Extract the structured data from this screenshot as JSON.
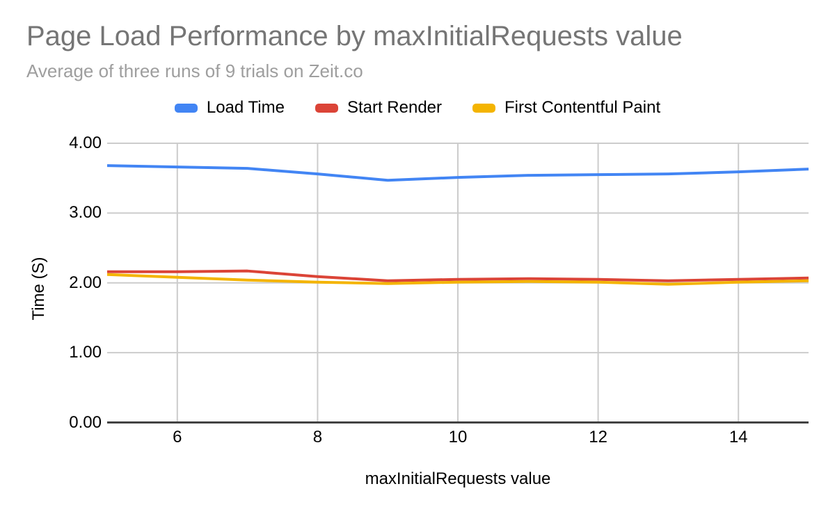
{
  "page": {
    "background": "#ffffff"
  },
  "chart_data": {
    "type": "line",
    "title": "Page Load Performance by maxInitialRequests value",
    "subtitle": "Average of three runs of 9 trials on Zeit.co",
    "xlabel": "maxInitialRequests value",
    "ylabel": "Time (S)",
    "xlim": [
      5,
      15
    ],
    "ylim": [
      0,
      4
    ],
    "grid": true,
    "legend_position": "top",
    "x_ticks": {
      "values": [
        6,
        8,
        10,
        12,
        14
      ],
      "labels": [
        "6",
        "8",
        "10",
        "12",
        "14"
      ]
    },
    "y_ticks": {
      "values": [
        0,
        1,
        2,
        3,
        4
      ],
      "labels": [
        "0.00",
        "1.00",
        "2.00",
        "3.00",
        "4.00"
      ]
    },
    "x": [
      5,
      6,
      7,
      8,
      9,
      10,
      11,
      12,
      13,
      14,
      15
    ],
    "series": [
      {
        "name": "Load Time",
        "color": "#4285F4",
        "values": [
          3.68,
          3.66,
          3.64,
          3.56,
          3.47,
          3.51,
          3.54,
          3.55,
          3.56,
          3.59,
          3.63
        ]
      },
      {
        "name": "Start Render",
        "color": "#DB4437",
        "values": [
          2.16,
          2.16,
          2.17,
          2.09,
          2.03,
          2.05,
          2.06,
          2.05,
          2.03,
          2.05,
          2.07
        ]
      },
      {
        "name": "First Contentful Paint",
        "color": "#F4B400",
        "values": [
          2.12,
          2.08,
          2.04,
          2.01,
          1.99,
          2.01,
          2.02,
          2.01,
          1.98,
          2.01,
          2.03
        ]
      }
    ],
    "colors": {
      "title": "#757575",
      "subtitle": "#9e9e9e",
      "gridline": "#cccccc",
      "axis_line": "#424242",
      "tick_label": "#000000"
    }
  }
}
